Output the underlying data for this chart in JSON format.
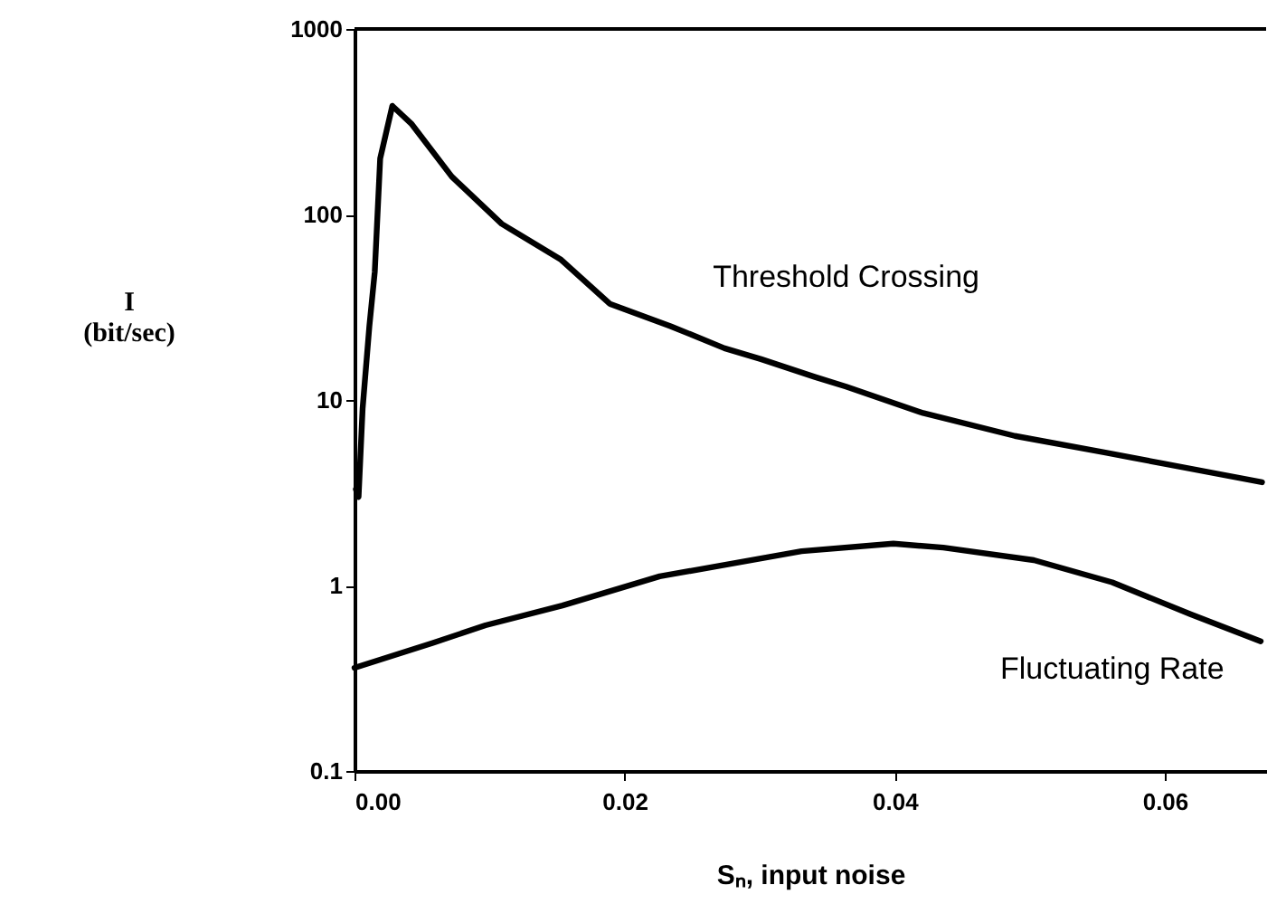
{
  "chart_data": {
    "type": "line",
    "xlabel": "Sₙ, input noise",
    "ylabel": "I (bit/sec)",
    "log": "y",
    "xlim": [
      0,
      0.0675
    ],
    "ylim": [
      0.1,
      1000
    ],
    "xticks": [
      {
        "value": 0,
        "label": "0.00"
      },
      {
        "value": 0.02,
        "label": "0.02"
      },
      {
        "value": 0.04,
        "label": "0.04"
      },
      {
        "value": 0.06,
        "label": "0.06"
      }
    ],
    "yticks": [
      0.1,
      1,
      10,
      100,
      1000
    ],
    "line_style": "solid",
    "series": [
      {
        "name": "Threshold Crossing",
        "color": "#000000",
        "x": [
          0.0001,
          0.0003,
          0.0006,
          0.0011,
          0.0015,
          0.0019,
          0.0028,
          0.0042,
          0.0072,
          0.0109,
          0.0153,
          0.0189,
          0.0234,
          0.0274,
          0.0301,
          0.0341,
          0.0364,
          0.0421,
          0.0489,
          0.0556,
          0.0609,
          0.0672
        ],
        "values": [
          3.3,
          3.0,
          9,
          25,
          49,
          200,
          385,
          309,
          160,
          89,
          57,
          33,
          25,
          19,
          16.6,
          13.3,
          11.8,
          8.5,
          6.4,
          5.2,
          4.4,
          3.6
        ]
      },
      {
        "name": "Fluctuating Rate",
        "color": "#000000",
        "x": [
          0,
          0.0058,
          0.0097,
          0.0154,
          0.0226,
          0.0331,
          0.0399,
          0.0436,
          0.0503,
          0.0561,
          0.0619,
          0.0671
        ],
        "values": [
          0.36,
          0.49,
          0.61,
          0.78,
          1.12,
          1.53,
          1.68,
          1.6,
          1.37,
          1.04,
          0.7,
          0.5
        ]
      }
    ]
  }
}
